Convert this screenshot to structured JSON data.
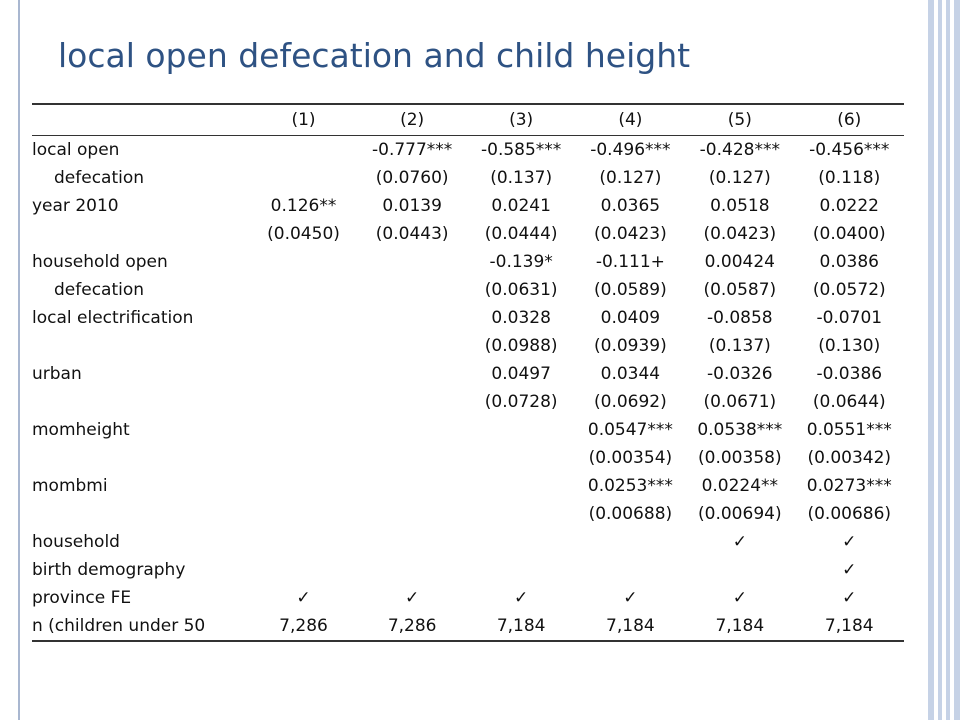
{
  "title": "local open defecation and child height",
  "table": {
    "columns": [
      "(1)",
      "(2)",
      "(3)",
      "(4)",
      "(5)",
      "(6)"
    ],
    "rows": [
      {
        "label": "local open",
        "indent": false,
        "cells": [
          "",
          "-0.777***",
          "-0.585***",
          "-0.496***",
          "-0.428***",
          "-0.456***"
        ]
      },
      {
        "label": "defecation",
        "indent": true,
        "cells": [
          "",
          "(0.0760)",
          "(0.137)",
          "(0.127)",
          "(0.127)",
          "(0.118)"
        ]
      },
      {
        "label": "year 2010",
        "indent": false,
        "cells": [
          "0.126**",
          "0.0139",
          "0.0241",
          "0.0365",
          "0.0518",
          "0.0222"
        ]
      },
      {
        "label": "",
        "indent": false,
        "cells": [
          "(0.0450)",
          "(0.0443)",
          "(0.0444)",
          "(0.0423)",
          "(0.0423)",
          "(0.0400)"
        ]
      },
      {
        "label": "household open",
        "indent": false,
        "cells": [
          "",
          "",
          "-0.139*",
          "-0.111+",
          "0.00424",
          "0.0386"
        ]
      },
      {
        "label": "defecation",
        "indent": true,
        "cells": [
          "",
          "",
          "(0.0631)",
          "(0.0589)",
          "(0.0587)",
          "(0.0572)"
        ]
      },
      {
        "label": "local electrification",
        "indent": false,
        "cells": [
          "",
          "",
          "0.0328",
          "0.0409",
          "-0.0858",
          "-0.0701"
        ]
      },
      {
        "label": "",
        "indent": false,
        "cells": [
          "",
          "",
          "(0.0988)",
          "(0.0939)",
          "(0.137)",
          "(0.130)"
        ]
      },
      {
        "label": "urban",
        "indent": false,
        "cells": [
          "",
          "",
          "0.0497",
          "0.0344",
          "-0.0326",
          "-0.0386"
        ]
      },
      {
        "label": "",
        "indent": false,
        "cells": [
          "",
          "",
          "(0.0728)",
          "(0.0692)",
          "(0.0671)",
          "(0.0644)"
        ]
      },
      {
        "label": "momheight",
        "indent": false,
        "cells": [
          "",
          "",
          "",
          "0.0547***",
          "0.0538***",
          "0.0551***"
        ]
      },
      {
        "label": "",
        "indent": false,
        "cells": [
          "",
          "",
          "",
          "(0.00354)",
          "(0.00358)",
          "(0.00342)"
        ]
      },
      {
        "label": "mombmi",
        "indent": false,
        "cells": [
          "",
          "",
          "",
          "0.0253***",
          "0.0224**",
          "0.0273***"
        ]
      },
      {
        "label": "",
        "indent": false,
        "cells": [
          "",
          "",
          "",
          "(0.00688)",
          "(0.00694)",
          "(0.00686)"
        ]
      },
      {
        "label": "household",
        "indent": false,
        "cells": [
          "",
          "",
          "",
          "",
          "✓",
          "✓"
        ]
      },
      {
        "label": "birth demography",
        "indent": false,
        "cells": [
          "",
          "",
          "",
          "",
          "",
          "✓"
        ]
      },
      {
        "label": "province FE",
        "indent": false,
        "cells": [
          "✓",
          "✓",
          "✓",
          "✓",
          "✓",
          "✓"
        ]
      },
      {
        "label": "n (children under 50",
        "indent": false,
        "cells": [
          "7,286",
          "7,286",
          "7,184",
          "7,184",
          "7,184",
          "7,184"
        ]
      }
    ]
  }
}
